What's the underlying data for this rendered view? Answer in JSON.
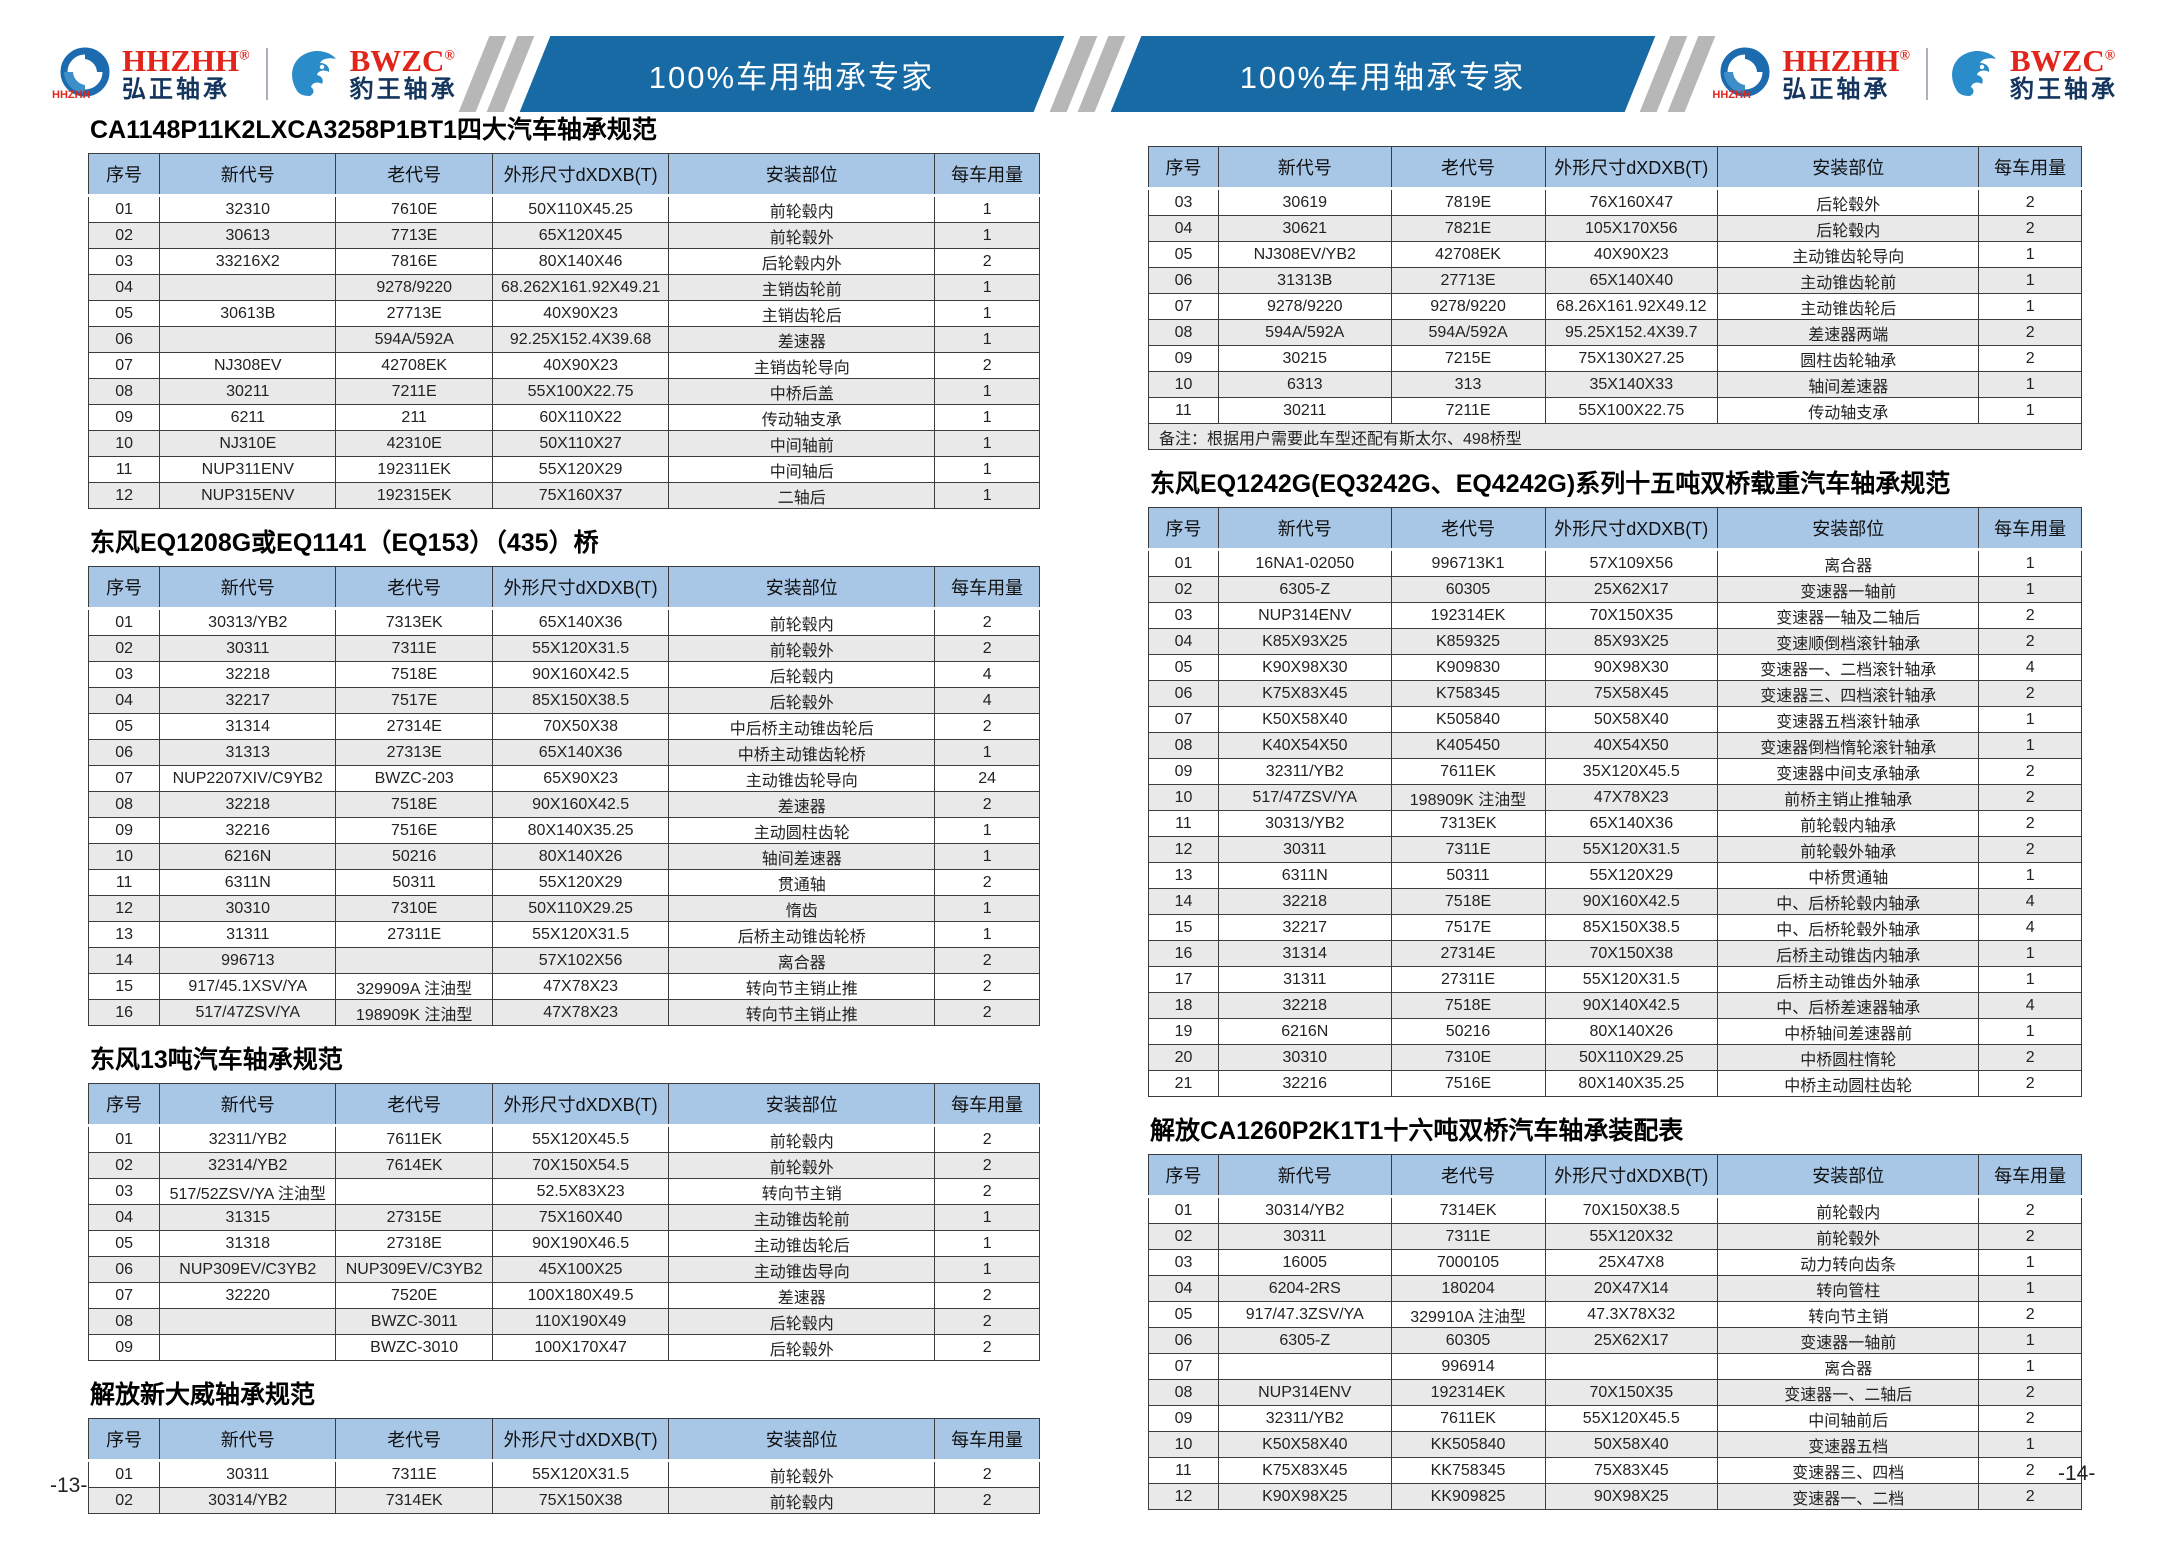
{
  "header": {
    "brand": {
      "hhzhh_en": "HHZHH",
      "hhzhh_reg": "®",
      "hhzhh_small": "HHZHH",
      "hhzhh_cn": "弘正轴承",
      "bwzc_en": "BWZC",
      "bwzc_reg": "®",
      "bwzc_cn": "豹王轴承"
    },
    "banner1_text": "100%车用轴承专家",
    "banner2_text": "100%车用轴承专家",
    "colors": {
      "banner_blue": "#186aa4",
      "table_header_blue": "#a8c7e6",
      "brand_red": "#e1251b",
      "brand_navy": "#14365e",
      "stripe_gray": "#b7b7b7",
      "alt_row_gray": "#e9e9e9"
    }
  },
  "columns": [
    "序号",
    "新代号",
    "老代号",
    "外形尺寸dXDXB(T)",
    "安装部位",
    "每车用量"
  ],
  "page13": {
    "page_number": "-13-",
    "tables": [
      {
        "title": "CA1148P11K2LXCA3258P1BT1四大汽车轴承规范",
        "rows": [
          [
            "01",
            "32310",
            "7610E",
            "50X110X45.25",
            "前轮毂内",
            "1"
          ],
          [
            "02",
            "30613",
            "7713E",
            "65X120X45",
            "前轮毂外",
            "1"
          ],
          [
            "03",
            "33216X2",
            "7816E",
            "80X140X46",
            "后轮毂内外",
            "2"
          ],
          [
            "04",
            "",
            "9278/9220",
            "68.262X161.92X49.21",
            "主销齿轮前",
            "1"
          ],
          [
            "05",
            "30613B",
            "27713E",
            "40X90X23",
            "主销齿轮后",
            "1"
          ],
          [
            "06",
            "",
            "594A/592A",
            "92.25X152.4X39.68",
            "差速器",
            "1"
          ],
          [
            "07",
            "NJ308EV",
            "42708EK",
            "40X90X23",
            "主销齿轮导向",
            "2"
          ],
          [
            "08",
            "30211",
            "7211E",
            "55X100X22.75",
            "中桥后盖",
            "1"
          ],
          [
            "09",
            "6211",
            "211",
            "60X110X22",
            "传动轴支承",
            "1"
          ],
          [
            "10",
            "NJ310E",
            "42310E",
            "50X110X27",
            "中间轴前",
            "1"
          ],
          [
            "11",
            "NUP311ENV",
            "192311EK",
            "55X120X29",
            "中间轴后",
            "1"
          ],
          [
            "12",
            "NUP315ENV",
            "192315EK",
            "75X160X37",
            "二轴后",
            "1"
          ]
        ]
      },
      {
        "title": "东风EQ1208G或EQ1141（EQ153）（435）桥",
        "rows": [
          [
            "01",
            "30313/YB2",
            "7313EK",
            "65X140X36",
            "前轮毂内",
            "2"
          ],
          [
            "02",
            "30311",
            "7311E",
            "55X120X31.5",
            "前轮毂外",
            "2"
          ],
          [
            "03",
            "32218",
            "7518E",
            "90X160X42.5",
            "后轮毂内",
            "4"
          ],
          [
            "04",
            "32217",
            "7517E",
            "85X150X38.5",
            "后轮毂外",
            "4"
          ],
          [
            "05",
            "31314",
            "27314E",
            "70X50X38",
            "中后桥主动锥齿轮后",
            "2"
          ],
          [
            "06",
            "31313",
            "27313E",
            "65X140X36",
            "中桥主动锥齿轮桥",
            "1"
          ],
          [
            "07",
            "NUP2207XIV/C9YB2",
            "BWZC-203",
            "65X90X23",
            "主动锥齿轮导向",
            "24"
          ],
          [
            "08",
            "32218",
            "7518E",
            "90X160X42.5",
            "差速器",
            "2"
          ],
          [
            "09",
            "32216",
            "7516E",
            "80X140X35.25",
            "主动圆柱齿轮",
            "1"
          ],
          [
            "10",
            "6216N",
            "50216",
            "80X140X26",
            "轴间差速器",
            "1"
          ],
          [
            "11",
            "6311N",
            "50311",
            "55X120X29",
            "贯通轴",
            "2"
          ],
          [
            "12",
            "30310",
            "7310E",
            "50X110X29.25",
            "惰齿",
            "1"
          ],
          [
            "13",
            "31311",
            "27311E",
            "55X120X31.5",
            "后桥主动锥齿轮桥",
            "1"
          ],
          [
            "14",
            "996713",
            "",
            "57X102X56",
            "离合器",
            "2"
          ],
          [
            "15",
            "917/45.1XSV/YA",
            "329909A 注油型",
            "47X78X23",
            "转向节主销止推",
            "2"
          ],
          [
            "16",
            "517/47ZSV/YA",
            "198909K 注油型",
            "47X78X23",
            "转向节主销止推",
            "2"
          ]
        ]
      },
      {
        "title": "东风13吨汽车轴承规范",
        "rows": [
          [
            "01",
            "32311/YB2",
            "7611EK",
            "55X120X45.5",
            "前轮毂内",
            "2"
          ],
          [
            "02",
            "32314/YB2",
            "7614EK",
            "70X150X54.5",
            "前轮毂外",
            "2"
          ],
          [
            "03",
            "517/52ZSV/YA 注油型",
            "",
            "52.5X83X23",
            "转向节主销",
            "2"
          ],
          [
            "04",
            "31315",
            "27315E",
            "75X160X40",
            "主动锥齿轮前",
            "1"
          ],
          [
            "05",
            "31318",
            "27318E",
            "90X190X46.5",
            "主动锥齿轮后",
            "1"
          ],
          [
            "06",
            "NUP309EV/C3YB2",
            "NUP309EV/C3YB2",
            "45X100X25",
            "主动锥齿导向",
            "1"
          ],
          [
            "07",
            "32220",
            "7520E",
            "100X180X49.5",
            "差速器",
            "2"
          ],
          [
            "08",
            "",
            "BWZC-3011",
            "110X190X49",
            "后轮毂内",
            "2"
          ],
          [
            "09",
            "",
            "BWZC-3010",
            "100X170X47",
            "后轮毂外",
            "2"
          ]
        ]
      },
      {
        "title": "解放新大威轴承规范",
        "rows": [
          [
            "01",
            "30311",
            "7311E",
            "55X120X31.5",
            "前轮毂外",
            "2"
          ],
          [
            "02",
            "30314/YB2",
            "7314EK",
            "75X150X38",
            "前轮毂内",
            "2"
          ]
        ]
      }
    ]
  },
  "page14": {
    "page_number": "-14-",
    "tables": [
      {
        "title": "",
        "note": "备注：根据用户需要此车型还配有斯太尔、498桥型",
        "rows": [
          [
            "03",
            "30619",
            "7819E",
            "76X160X47",
            "后轮毂外",
            "2"
          ],
          [
            "04",
            "30621",
            "7821E",
            "105X170X56",
            "后轮毂内",
            "2"
          ],
          [
            "05",
            "NJ308EV/YB2",
            "42708EK",
            "40X90X23",
            "主动锥齿轮导向",
            "1"
          ],
          [
            "06",
            "31313B",
            "27713E",
            "65X140X40",
            "主动锥齿轮前",
            "1"
          ],
          [
            "07",
            "9278/9220",
            "9278/9220",
            "68.26X161.92X49.12",
            "主动锥齿轮后",
            "1"
          ],
          [
            "08",
            "594A/592A",
            "594A/592A",
            "95.25X152.4X39.7",
            "差速器两端",
            "2"
          ],
          [
            "09",
            "30215",
            "7215E",
            "75X130X27.25",
            "圆柱齿轮轴承",
            "2"
          ],
          [
            "10",
            "6313",
            "313",
            "35X140X33",
            "轴间差速器",
            "1"
          ],
          [
            "11",
            "30211",
            "7211E",
            "55X100X22.75",
            "传动轴支承",
            "1"
          ]
        ]
      },
      {
        "title": "东风EQ1242G(EQ3242G、EQ4242G)系列十五吨双桥载重汽车轴承规范",
        "rows": [
          [
            "01",
            "16NA1-02050",
            "996713K1",
            "57X109X56",
            "离合器",
            "1"
          ],
          [
            "02",
            "6305-Z",
            "60305",
            "25X62X17",
            "变速器一轴前",
            "1"
          ],
          [
            "03",
            "NUP314ENV",
            "192314EK",
            "70X150X35",
            "变速器一轴及二轴后",
            "2"
          ],
          [
            "04",
            "K85X93X25",
            "K859325",
            "85X93X25",
            "变速顺倒档滚针轴承",
            "2"
          ],
          [
            "05",
            "K90X98X30",
            "K909830",
            "90X98X30",
            "变速器一、二档滚针轴承",
            "4"
          ],
          [
            "06",
            "K75X83X45",
            "K758345",
            "75X58X45",
            "变速器三、四档滚针轴承",
            "2"
          ],
          [
            "07",
            "K50X58X40",
            "K505840",
            "50X58X40",
            "变速器五档滚针轴承",
            "1"
          ],
          [
            "08",
            "K40X54X50",
            "K405450",
            "40X54X50",
            "变速器倒档惰轮滚针轴承",
            "1"
          ],
          [
            "09",
            "32311/YB2",
            "7611EK",
            "35X120X45.5",
            "变速器中间支承轴承",
            "2"
          ],
          [
            "10",
            "517/47ZSV/YA",
            "198909K 注油型",
            "47X78X23",
            "前桥主销止推轴承",
            "2"
          ],
          [
            "11",
            "30313/YB2",
            "7313EK",
            "65X140X36",
            "前轮毂内轴承",
            "2"
          ],
          [
            "12",
            "30311",
            "7311E",
            "55X120X31.5",
            "前轮毂外轴承",
            "2"
          ],
          [
            "13",
            "6311N",
            "50311",
            "55X120X29",
            "中桥贯通轴",
            "1"
          ],
          [
            "14",
            "32218",
            "7518E",
            "90X160X42.5",
            "中、后桥轮毂内轴承",
            "4"
          ],
          [
            "15",
            "32217",
            "7517E",
            "85X150X38.5",
            "中、后桥轮毂外轴承",
            "4"
          ],
          [
            "16",
            "31314",
            "27314E",
            "70X150X38",
            "后桥主动锥齿内轴承",
            "1"
          ],
          [
            "17",
            "31311",
            "27311E",
            "55X120X31.5",
            "后桥主动锥齿外轴承",
            "1"
          ],
          [
            "18",
            "32218",
            "7518E",
            "90X140X42.5",
            "中、后桥差速器轴承",
            "4"
          ],
          [
            "19",
            "6216N",
            "50216",
            "80X140X26",
            "中桥轴间差速器前",
            "1"
          ],
          [
            "20",
            "30310",
            "7310E",
            "50X110X29.25",
            "中桥圆柱惰轮",
            "2"
          ],
          [
            "21",
            "32216",
            "7516E",
            "80X140X35.25",
            "中桥主动圆柱齿轮",
            "2"
          ]
        ]
      },
      {
        "title": "解放CA1260P2K1T1十六吨双桥汽车轴承装配表",
        "rows": [
          [
            "01",
            "30314/YB2",
            "7314EK",
            "70X150X38.5",
            "前轮毂内",
            "2"
          ],
          [
            "02",
            "30311",
            "7311E",
            "55X120X32",
            "前轮毂外",
            "2"
          ],
          [
            "03",
            "16005",
            "7000105",
            "25X47X8",
            "动力转向齿条",
            "1"
          ],
          [
            "04",
            "6204-2RS",
            "180204",
            "20X47X14",
            "转向管柱",
            "1"
          ],
          [
            "05",
            "917/47.3ZSV/YA",
            "329910A 注油型",
            "47.3X78X32",
            "转向节主销",
            "2"
          ],
          [
            "06",
            "6305-Z",
            "60305",
            "25X62X17",
            "变速器一轴前",
            "1"
          ],
          [
            "07",
            "",
            "996914",
            "",
            "离合器",
            "1"
          ],
          [
            "08",
            "NUP314ENV",
            "192314EK",
            "70X150X35",
            "变速器一、二轴后",
            "2"
          ],
          [
            "09",
            "32311/YB2",
            "7611EK",
            "55X120X45.5",
            "中间轴前后",
            "2"
          ],
          [
            "10",
            "K50X58X40",
            "KK505840",
            "50X58X40",
            "变速器五档",
            "1"
          ],
          [
            "11",
            "K75X83X45",
            "KK758345",
            "75X83X45",
            "变速器三、四档",
            "2"
          ],
          [
            "12",
            "K90X98X25",
            "KK909825",
            "90X98X25",
            "变速器一、二档",
            "2"
          ]
        ]
      }
    ]
  }
}
